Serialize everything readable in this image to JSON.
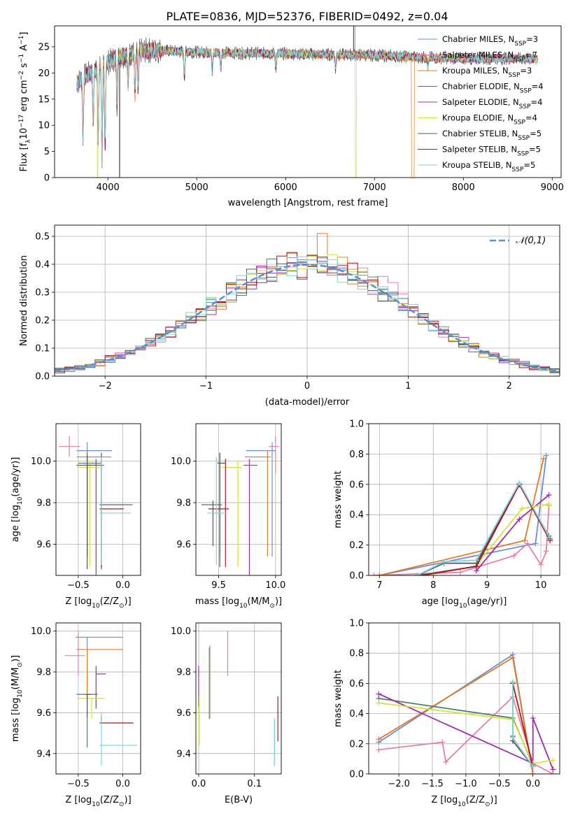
{
  "figure": {
    "title": "PLATE=0836, MJD=52376, FIBERID=0492, z=0.04"
  },
  "model_colors": [
    "#6b8fd4",
    "#e97ea8",
    "#e07b28",
    "#4f7f6a",
    "#9b2fb0",
    "#d4e23c",
    "#555555",
    "#b0141f",
    "#7fd3dc"
  ],
  "legend_spectrum": [
    "Chabrier MILES, N_SSP=3",
    "Salpeter MILES, N_SSP=7",
    "Kroupa MILES, N_SSP=3",
    "Chabrier ELODIE, N_SSP=4",
    "Salpeter ELODIE, N_SSP=4",
    "Kroupa ELODIE, N_SSP=4",
    "Chabrier STELIB, N_SSP=5",
    "Salpeter STELIB, N_SSP=5",
    "Kroupa STELIB, N_SSP=5"
  ],
  "chart_data": [
    {
      "id": "spectrum",
      "type": "line",
      "xlabel": "wavelength [Angstrom, rest frame]",
      "ylabel": "Flux [f_λ10^-17 erg cm^-2 s^-1 A^-1]",
      "xlim": [
        3400,
        9100
      ],
      "ylim": [
        0,
        29
      ],
      "xticks": [
        4000,
        5000,
        6000,
        7000,
        8000,
        9000
      ],
      "yticks": [
        0,
        5,
        10,
        15,
        20,
        25
      ],
      "continuum": {
        "x": [
          3650,
          3700,
          3800,
          3900,
          4000,
          4100,
          4200,
          4400,
          4600,
          4800,
          5000,
          5500,
          6000,
          6500,
          7000,
          7500,
          8000,
          8500,
          8840
        ],
        "y": [
          18,
          19,
          20,
          21.5,
          22,
          23,
          23.5,
          24.3,
          24.3,
          24.1,
          24,
          23.8,
          23.7,
          23.5,
          23.4,
          23,
          22.8,
          22.8,
          22.6
        ]
      },
      "absorption_lines": [
        {
          "x": 3720,
          "depth": 12
        },
        {
          "x": 3835,
          "depth": 10
        },
        {
          "x": 3890,
          "depth": 15
        },
        {
          "x": 3934,
          "depth": 18
        },
        {
          "x": 3968,
          "depth": 16
        },
        {
          "x": 4102,
          "depth": 9
        },
        {
          "x": 4227,
          "depth": 6
        },
        {
          "x": 4305,
          "depth": 8
        },
        {
          "x": 4340,
          "depth": 7
        },
        {
          "x": 4861,
          "depth": 5
        },
        {
          "x": 5175,
          "depth": 4
        },
        {
          "x": 5270,
          "depth": 3
        },
        {
          "x": 5890,
          "depth": 3
        },
        {
          "x": 6563,
          "depth": 3
        },
        {
          "x": 7600,
          "depth": 2
        }
      ],
      "dropouts": [
        {
          "x": 3885,
          "model": 5
        },
        {
          "x": 4132,
          "model": 6
        },
        {
          "x": 6790,
          "model": 5
        },
        {
          "x": 7420,
          "model": 2
        }
      ],
      "spike_top": {
        "x": 6765,
        "y": 29
      }
    },
    {
      "id": "residual_hist",
      "type": "histogram",
      "xlabel": "(data-model)/error",
      "ylabel": "Normed distribution",
      "xlim": [
        -2.5,
        2.5
      ],
      "ylim": [
        0,
        0.54
      ],
      "xticks": [
        -2,
        -1,
        0,
        1,
        2
      ],
      "yticks": [
        0.0,
        0.1,
        0.2,
        0.3,
        0.4,
        0.5
      ],
      "bin_width": 0.1,
      "reference_curve": {
        "name": "𝒩(0,1)",
        "mean": 0,
        "sigma": 1
      }
    },
    {
      "id": "age_vs_Z",
      "type": "errorbar",
      "xlabel": "Z [log10(Z/Z⊙)]",
      "ylabel": "age  [log10(age/yr)]",
      "xlim": [
        -0.75,
        0.2
      ],
      "ylim": [
        9.45,
        10.18
      ],
      "xticks": [
        -0.5,
        0.0
      ],
      "yticks": [
        9.6,
        9.8,
        10.0
      ],
      "points": [
        {
          "model": 1,
          "x": -0.6,
          "y": 10.07,
          "xerr": [
            0.12,
            0.12
          ],
          "yerr": [
            0.05,
            0.05
          ]
        },
        {
          "model": 0,
          "x": -0.4,
          "y": 10.05,
          "xerr": [
            0.12,
            0.28
          ],
          "yerr": [
            0.51,
            0.04
          ]
        },
        {
          "model": 2,
          "x": -0.4,
          "y": 10.02,
          "xerr": [
            0.12,
            0.27
          ],
          "yerr": [
            0.48,
            0.03
          ]
        },
        {
          "model": 3,
          "x": -0.4,
          "y": 9.99,
          "xerr": [
            0.1,
            0.16
          ],
          "yerr": [
            0.45,
            0.05
          ]
        },
        {
          "model": 4,
          "x": -0.3,
          "y": 9.98,
          "xerr": [
            0.14,
            0.09
          ],
          "yerr": [
            0.64,
            0.03
          ]
        },
        {
          "model": 5,
          "x": -0.37,
          "y": 9.97,
          "xerr": [
            0.14,
            0.11
          ],
          "yerr": [
            0.48,
            0.03
          ]
        },
        {
          "model": 6,
          "x": -0.4,
          "y": 9.98,
          "xerr": [
            0.12,
            0.16
          ],
          "yerr": [
            0.5,
            0.05
          ]
        },
        {
          "model": 6,
          "x": -0.24,
          "y": 9.79,
          "xerr": [
            0.02,
            0.35
          ],
          "yerr": [
            0.31,
            0.25
          ]
        },
        {
          "model": 7,
          "x": -0.24,
          "y": 9.77,
          "xerr": [
            0.02,
            0.25
          ],
          "yerr": [
            0.28,
            0.24
          ]
        },
        {
          "model": 8,
          "x": -0.24,
          "y": 9.75,
          "xerr": [
            0.02,
            0.33
          ],
          "yerr": [
            0.25,
            0.27
          ]
        }
      ]
    },
    {
      "id": "age_vs_mass",
      "type": "errorbar",
      "xlabel": "mass [log10(M/M⊙)]",
      "ylabel": "",
      "xlim": [
        9.3,
        10.05
      ],
      "ylim": [
        9.45,
        10.18
      ],
      "xticks": [
        9.5,
        10.0
      ],
      "yticks": [
        9.6,
        9.8,
        10.0
      ],
      "points": [
        {
          "model": 1,
          "x": 10.0,
          "y": 10.07,
          "xerr": [
            0.06,
            0.03
          ],
          "yerr": [
            0.13,
            0.05
          ]
        },
        {
          "model": 0,
          "x": 9.97,
          "y": 10.05,
          "xerr": [
            0.23,
            0.03
          ],
          "yerr": [
            0.51,
            0.04
          ]
        },
        {
          "model": 2,
          "x": 9.93,
          "y": 10.02,
          "xerr": [
            0.2,
            0.03
          ],
          "yerr": [
            0.48,
            0.03
          ]
        },
        {
          "model": 3,
          "x": 9.51,
          "y": 9.99,
          "xerr": [
            0.02,
            0.05
          ],
          "yerr": [
            0.45,
            0.05
          ]
        },
        {
          "model": 4,
          "x": 9.77,
          "y": 9.98,
          "xerr": [
            0.05,
            0.07
          ],
          "yerr": [
            0.64,
            0.03
          ]
        },
        {
          "model": 5,
          "x": 9.67,
          "y": 9.97,
          "xerr": [
            0.15,
            0.03
          ],
          "yerr": [
            0.48,
            0.03
          ]
        },
        {
          "model": 6,
          "x": 9.51,
          "y": 9.99,
          "xerr": [
            0.02,
            0.04
          ],
          "yerr": [
            0.5,
            0.05
          ]
        },
        {
          "model": 6,
          "x": 9.45,
          "y": 9.79,
          "xerr": [
            0.1,
            0.08
          ],
          "yerr": [
            0.2,
            0.02
          ]
        },
        {
          "model": 7,
          "x": 9.56,
          "y": 9.77,
          "xerr": [
            0.15,
            0.03
          ],
          "yerr": [
            0.28,
            0.24
          ]
        },
        {
          "model": 8,
          "x": 9.48,
          "y": 9.75,
          "xerr": [
            0.08,
            0.09
          ],
          "yerr": [
            0.25,
            0.27
          ]
        }
      ]
    },
    {
      "id": "massweight_vs_age",
      "type": "line",
      "xlabel": "age  [log10(age/yr)]",
      "ylabel": "mass weight",
      "xlim": [
        6.8,
        10.35
      ],
      "ylim": [
        0,
        1.0
      ],
      "xticks": [
        7,
        8,
        9,
        10
      ],
      "yticks": [
        0.0,
        0.2,
        0.4,
        0.6,
        0.8,
        1.0
      ],
      "series": [
        {
          "model": 0,
          "x": [
            7.0,
            9.9,
            10.1
          ],
          "y": [
            0.0,
            0.21,
            0.79
          ]
        },
        {
          "model": 1,
          "x": [
            6.9,
            8.5,
            9.5,
            9.75,
            10.0,
            10.1,
            10.15
          ],
          "y": [
            0.0,
            0.02,
            0.13,
            0.21,
            0.07,
            0.16,
            0.46
          ]
        },
        {
          "model": 2,
          "x": [
            7.0,
            9.7,
            10.05
          ],
          "y": [
            0.0,
            0.23,
            0.77
          ]
        },
        {
          "model": 3,
          "x": [
            7.7,
            8.8,
            9.6,
            10.15
          ],
          "y": [
            0.0,
            0.06,
            0.6,
            0.26
          ]
        },
        {
          "model": 4,
          "x": [
            8.8,
            9.6,
            10.15
          ],
          "y": [
            0.03,
            0.37,
            0.53
          ]
        },
        {
          "model": 5,
          "x": [
            8.85,
            9.65,
            10.15
          ],
          "y": [
            0.09,
            0.44,
            0.47
          ]
        },
        {
          "model": 6,
          "x": [
            7.7,
            8.2,
            8.8,
            9.6,
            10.17
          ],
          "y": [
            0.0,
            0.08,
            0.08,
            0.6,
            0.24
          ]
        },
        {
          "model": 7,
          "x": [
            7.8,
            8.8,
            9.6,
            10.17
          ],
          "y": [
            0.0,
            0.06,
            0.6,
            0.23
          ]
        },
        {
          "model": 8,
          "x": [
            7.7,
            8.2,
            8.8,
            9.6,
            10.16
          ],
          "y": [
            0.0,
            0.09,
            0.1,
            0.61,
            0.25
          ]
        }
      ]
    },
    {
      "id": "mass_vs_Z",
      "type": "errorbar",
      "xlabel": "Z [log10(Z/Z⊙)]",
      "ylabel": "mass [log10(M/M⊙)]",
      "xlim": [
        -0.75,
        0.2
      ],
      "ylim": [
        9.3,
        10.04
      ],
      "xticks": [
        -0.5,
        0.0
      ],
      "yticks": [
        9.4,
        9.6,
        9.8,
        10.0
      ],
      "points": [
        {
          "model": 1,
          "x": -0.5,
          "y": 9.88,
          "xerr": [
            0.15,
            0.08
          ],
          "yerr": [
            0.1,
            0.12
          ]
        },
        {
          "model": 0,
          "x": -0.4,
          "y": 9.97,
          "xerr": [
            0.13,
            0.4
          ],
          "yerr": [
            0.25,
            0.0
          ]
        },
        {
          "model": 2,
          "x": -0.4,
          "y": 9.91,
          "xerr": [
            0.12,
            0.4
          ],
          "yerr": [
            0.25,
            0.0
          ]
        },
        {
          "model": 3,
          "x": -0.4,
          "y": 9.69,
          "xerr": [
            0.12,
            0.12
          ],
          "yerr": [
            0.26,
            0.0
          ]
        },
        {
          "model": 4,
          "x": -0.3,
          "y": 9.79,
          "xerr": [
            0.0,
            0.11
          ],
          "yerr": [
            0.17,
            0.04
          ]
        },
        {
          "model": 5,
          "x": -0.35,
          "y": 9.67,
          "xerr": [
            0.15,
            0.15
          ],
          "yerr": [
            0.1,
            0.0
          ]
        },
        {
          "model": 6,
          "x": -0.4,
          "y": 9.69,
          "xerr": [
            0.02,
            0.05
          ],
          "yerr": [
            0.11,
            0.0
          ]
        },
        {
          "model": 7,
          "x": -0.24,
          "y": 9.55,
          "xerr": [
            0.02,
            0.36
          ],
          "yerr": [
            0.0,
            0.04
          ]
        },
        {
          "model": 8,
          "x": -0.24,
          "y": 9.44,
          "xerr": [
            0.02,
            0.4
          ],
          "yerr": [
            0.1,
            0.16
          ]
        }
      ]
    },
    {
      "id": "mass_vs_ebv",
      "type": "errorbar",
      "xlabel": "E(B-V)",
      "ylabel": "",
      "xlim": [
        -0.005,
        0.148
      ],
      "ylim": [
        9.3,
        10.04
      ],
      "xticks": [
        0.0,
        0.1
      ],
      "yticks": [
        9.4,
        9.6,
        9.8,
        10.0
      ],
      "points": [
        {
          "model": 1,
          "x": 0.052,
          "y": 9.88,
          "xerr": [
            0,
            0
          ],
          "yerr": [
            0.1,
            0.12
          ]
        },
        {
          "model": 2,
          "x": 0.02,
          "y": 9.75,
          "xerr": [
            0,
            0
          ],
          "yerr": [
            0.18,
            0.18
          ]
        },
        {
          "model": 0,
          "x": 0.019,
          "y": 9.75,
          "xerr": [
            0,
            0
          ],
          "yerr": [
            0.18,
            0.17
          ]
        },
        {
          "model": 4,
          "x": 0.0,
          "y": 9.77,
          "xerr": [
            0,
            0
          ],
          "yerr": [
            0.14,
            0.06
          ]
        },
        {
          "model": 5,
          "x": 0.001,
          "y": 9.55,
          "xerr": [
            0,
            0
          ],
          "yerr": [
            0.11,
            0.13
          ]
        },
        {
          "model": 7,
          "x": 0.142,
          "y": 9.57,
          "xerr": [
            0,
            0
          ],
          "yerr": [
            0.11,
            0.11
          ]
        },
        {
          "model": 3,
          "x": 0.136,
          "y": 9.47,
          "xerr": [
            0,
            0
          ],
          "yerr": [
            0.13,
            0.1
          ]
        },
        {
          "model": 8,
          "x": 0.136,
          "y": 9.45,
          "xerr": [
            0,
            0
          ],
          "yerr": [
            0.11,
            0.12
          ]
        }
      ]
    },
    {
      "id": "massweight_vs_Z",
      "type": "line",
      "xlabel": "Z [log10(Z/Z⊙)]",
      "ylabel": "mass weight",
      "xlim": [
        -2.45,
        0.4
      ],
      "ylim": [
        0,
        1.0
      ],
      "xticks": [
        -2.0,
        -1.5,
        -1.0,
        -0.5,
        0.0
      ],
      "yticks": [
        0.0,
        0.2,
        0.4,
        0.6,
        0.8,
        1.0
      ],
      "series": [
        {
          "model": 0,
          "x": [
            -2.3,
            -0.3,
            0.0
          ],
          "y": [
            0.21,
            0.79,
            0.0
          ]
        },
        {
          "model": 1,
          "x": [
            -2.3,
            -1.35,
            -1.3,
            -0.3,
            0.0,
            0.3
          ],
          "y": [
            0.16,
            0.21,
            0.08,
            0.51,
            0.07,
            0.0
          ]
        },
        {
          "model": 2,
          "x": [
            -2.3,
            -0.3,
            0.0
          ],
          "y": [
            0.23,
            0.77,
            0.0
          ]
        },
        {
          "model": 3,
          "x": [
            -2.3,
            -0.3,
            0.0
          ],
          "y": [
            0.5,
            0.37,
            0.06
          ]
        },
        {
          "model": 4,
          "x": [
            -2.3,
            0.0,
            0.0,
            0.3
          ],
          "y": [
            0.53,
            0.07,
            0.37,
            0.03
          ]
        },
        {
          "model": 5,
          "x": [
            -2.3,
            -0.3,
            0.0,
            0.3
          ],
          "y": [
            0.47,
            0.36,
            0.07,
            0.09
          ]
        },
        {
          "model": 6,
          "x": [
            -0.3,
            -0.3,
            -0.3,
            0.0
          ],
          "y": [
            0.6,
            0.25,
            0.22,
            0.05
          ]
        },
        {
          "model": 7,
          "x": [
            -0.3,
            0.0
          ],
          "y": [
            0.6,
            0.05
          ]
        },
        {
          "model": 8,
          "x": [
            -0.3,
            -0.3,
            0.0
          ],
          "y": [
            0.61,
            0.24,
            0.05
          ]
        }
      ]
    }
  ]
}
